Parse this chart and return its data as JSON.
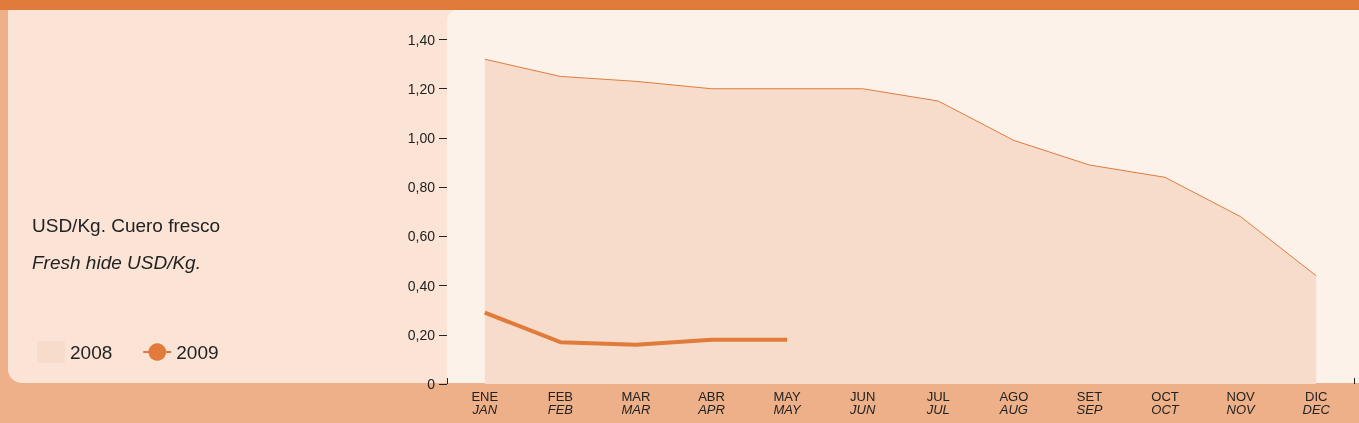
{
  "chart_data": {
    "type": "area",
    "annotations": [
      "USD/Kg. Cuero fresco",
      "Fresh hide USD/Kg."
    ],
    "categories": [
      "ENE\nJAN",
      "FEB\nFEB",
      "MAR\nMAR",
      "ABR\nAPR",
      "MAY\nMAY",
      "JUN\nJUN",
      "JUL\nJUL",
      "AGO\nAUG",
      "SET\nSEP",
      "OCT\nOCT",
      "NOV\nNOV",
      "DIC\nDEC"
    ],
    "series": [
      {
        "name": "2008",
        "color": "#f7dccb",
        "values": [
          1.32,
          1.25,
          1.23,
          1.2,
          1.2,
          1.2,
          1.15,
          0.99,
          0.89,
          0.84,
          0.68,
          0.44
        ]
      },
      {
        "name": "2009",
        "type": "line",
        "color": "#e07b3c",
        "values": [
          0.29,
          0.17,
          0.16,
          0.18,
          0.18,
          null,
          null,
          null,
          null,
          null,
          null,
          null
        ]
      }
    ],
    "ylim": [
      0,
      1.52
    ],
    "yticks": [
      {
        "value": 0,
        "label": "0"
      },
      {
        "value": 0.2,
        "label": "0,20"
      },
      {
        "value": 0.4,
        "label": "0,40"
      },
      {
        "value": 0.6,
        "label": "0,60"
      },
      {
        "value": 0.8,
        "label": "0,80"
      },
      {
        "value": 1,
        "label": "1,00"
      },
      {
        "value": 1.2,
        "label": "1,20"
      },
      {
        "value": 1.4,
        "label": "1,40"
      }
    ],
    "grid": false,
    "legend": "bottom left"
  }
}
